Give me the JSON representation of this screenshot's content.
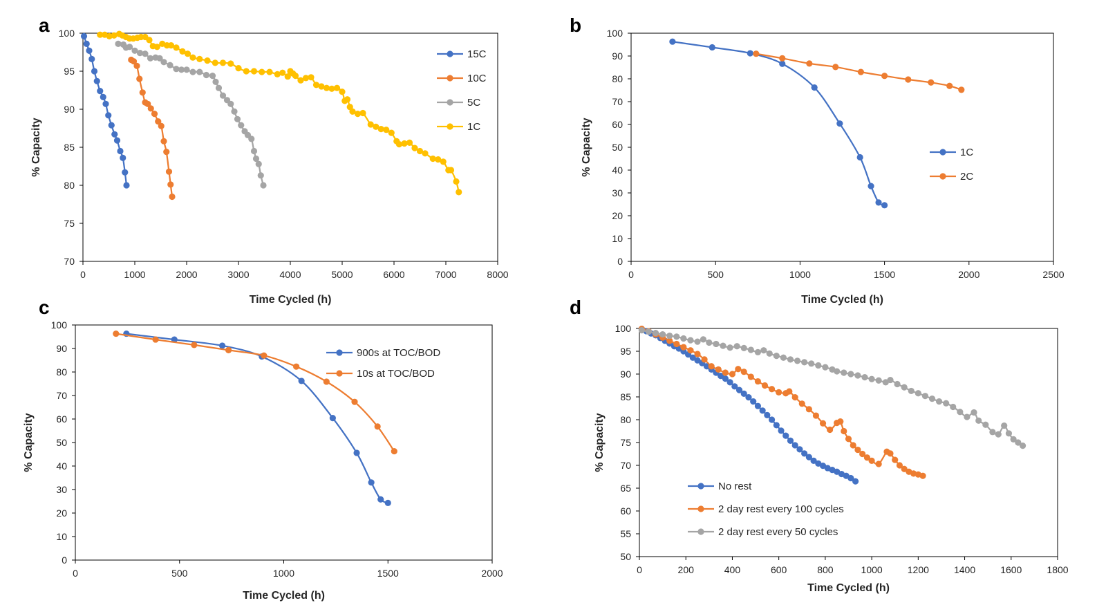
{
  "chart_data": [
    {
      "type": "line",
      "panel_label": "a",
      "xlabel": "Time Cycled (h)",
      "ylabel": "% Capacity",
      "xlim": [
        0,
        8000
      ],
      "ylim": [
        70,
        100
      ],
      "x_ticks": [
        "0",
        "1000",
        "2000",
        "3000",
        "4000",
        "5000",
        "6000",
        "7000",
        "8000"
      ],
      "y_ticks": [
        "70",
        "75",
        "80",
        "85",
        "90",
        "95",
        "100"
      ],
      "legend_position": "top-right",
      "series": [
        {
          "name": "15C",
          "color": "#4472C4",
          "x": [
            20,
            70,
            120,
            170,
            220,
            270,
            330,
            390,
            440,
            490,
            550,
            610,
            660,
            720,
            770,
            810,
            840
          ],
          "y": [
            99.6,
            98.6,
            97.7,
            96.6,
            95.0,
            93.7,
            92.4,
            91.6,
            90.7,
            89.2,
            87.9,
            86.7,
            85.9,
            84.5,
            83.6,
            81.7,
            80.0
          ]
        },
        {
          "name": "10C",
          "color": "#ED7D31",
          "x": [
            930,
            980,
            1040,
            1090,
            1150,
            1200,
            1250,
            1310,
            1380,
            1450,
            1510,
            1560,
            1610,
            1660,
            1690,
            1720
          ],
          "y": [
            96.5,
            96.3,
            95.7,
            94.0,
            92.2,
            90.9,
            90.7,
            90.1,
            89.4,
            88.4,
            87.8,
            85.8,
            84.4,
            81.8,
            80.1,
            78.5
          ]
        },
        {
          "name": "5C",
          "color": "#A5A5A5",
          "x": [
            680,
            780,
            830,
            900,
            1000,
            1100,
            1200,
            1300,
            1400,
            1480,
            1560,
            1680,
            1800,
            1900,
            2000,
            2120,
            2250,
            2380,
            2500,
            2560,
            2620,
            2700,
            2780,
            2850,
            2920,
            2980,
            3050,
            3120,
            3180,
            3250,
            3300,
            3340,
            3390,
            3430,
            3480
          ],
          "y": [
            98.6,
            98.5,
            98.1,
            98.2,
            97.7,
            97.4,
            97.3,
            96.7,
            96.8,
            96.7,
            96.2,
            95.8,
            95.3,
            95.2,
            95.2,
            94.9,
            94.9,
            94.5,
            94.4,
            93.6,
            92.8,
            91.8,
            91.2,
            90.7,
            89.7,
            88.7,
            87.9,
            87.1,
            86.6,
            86.1,
            84.5,
            83.5,
            82.8,
            81.3,
            80.0
          ]
        },
        {
          "name": "1C",
          "color": "#FFC000",
          "x": [
            330,
            420,
            510,
            600,
            700,
            760,
            830,
            900,
            970,
            1050,
            1120,
            1200,
            1280,
            1350,
            1430,
            1530,
            1620,
            1700,
            1800,
            1920,
            2020,
            2120,
            2250,
            2400,
            2550,
            2700,
            2850,
            3000,
            3150,
            3300,
            3450,
            3600,
            3750,
            3850,
            3950,
            4000,
            4050,
            4100,
            4200,
            4300,
            4400,
            4500,
            4600,
            4700,
            4800,
            4900,
            5000,
            5050,
            5100,
            5150,
            5200,
            5300,
            5400,
            5550,
            5650,
            5750,
            5850,
            5950,
            6050,
            6100,
            6200,
            6300,
            6400,
            6500,
            6600,
            6750,
            6850,
            6950,
            7050,
            7100,
            7200,
            7250
          ],
          "y": [
            99.8,
            99.8,
            99.6,
            99.7,
            99.9,
            99.7,
            99.5,
            99.3,
            99.3,
            99.4,
            99.5,
            99.5,
            99.1,
            98.3,
            98.2,
            98.6,
            98.4,
            98.4,
            98.1,
            97.6,
            97.3,
            96.8,
            96.6,
            96.4,
            96.1,
            96.1,
            96.0,
            95.4,
            95.0,
            95.0,
            94.9,
            94.9,
            94.6,
            94.8,
            94.3,
            95.0,
            94.7,
            94.4,
            93.8,
            94.1,
            94.2,
            93.2,
            93.0,
            92.8,
            92.7,
            92.8,
            92.3,
            91.1,
            91.3,
            90.3,
            89.7,
            89.4,
            89.5,
            88.0,
            87.7,
            87.4,
            87.3,
            86.9,
            85.8,
            85.4,
            85.5,
            85.6,
            84.9,
            84.5,
            84.2,
            83.5,
            83.4,
            83.1,
            82.0,
            82.0,
            80.5,
            79.1
          ]
        }
      ]
    },
    {
      "type": "line",
      "panel_label": "b",
      "xlabel": "Time Cycled (h)",
      "ylabel": "% Capacity",
      "xlim": [
        0,
        2500
      ],
      "ylim": [
        0,
        100
      ],
      "x_ticks": [
        "0",
        "500",
        "1000",
        "1500",
        "2000",
        "2500"
      ],
      "y_ticks": [
        "0",
        "10",
        "20",
        "30",
        "40",
        "50",
        "60",
        "70",
        "80",
        "90",
        "100"
      ],
      "legend_position": "right",
      "series": [
        {
          "name": "1C",
          "color": "#4472C4",
          "x": [
            245,
            480,
            705,
            895,
            1085,
            1235,
            1355,
            1420,
            1465,
            1500
          ],
          "y": [
            96.3,
            93.8,
            91.2,
            86.6,
            76.2,
            60.4,
            45.6,
            33.0,
            25.8,
            24.6
          ]
        },
        {
          "name": "2C",
          "color": "#ED7D31",
          "x": [
            740,
            895,
            1055,
            1210,
            1360,
            1500,
            1640,
            1775,
            1885,
            1955
          ],
          "y": [
            91.0,
            89.0,
            86.7,
            85.2,
            83.0,
            81.3,
            79.7,
            78.4,
            76.9,
            75.2
          ]
        }
      ]
    },
    {
      "type": "line",
      "panel_label": "c",
      "xlabel": "Time Cycled (h)",
      "ylabel": "% Capacity",
      "xlim": [
        0,
        2000
      ],
      "ylim": [
        0,
        100
      ],
      "x_ticks": [
        "0",
        "500",
        "1000",
        "1500",
        "2000"
      ],
      "y_ticks": [
        "0",
        "10",
        "20",
        "30",
        "40",
        "50",
        "60",
        "70",
        "80",
        "90",
        "100"
      ],
      "legend_position": "top-right",
      "series": [
        {
          "name": "900s at TOC/BOD",
          "color": "#4472C4",
          "x": [
            245,
            475,
            705,
            895,
            1085,
            1235,
            1350,
            1420,
            1465,
            1500
          ],
          "y": [
            96.3,
            93.8,
            91.2,
            86.6,
            76.2,
            60.4,
            45.6,
            33.0,
            25.8,
            24.3
          ]
        },
        {
          "name": "10s at TOC/BOD",
          "color": "#ED7D31",
          "x": [
            195,
            385,
            570,
            735,
            905,
            1060,
            1205,
            1340,
            1450,
            1530
          ],
          "y": [
            96.3,
            93.8,
            91.5,
            89.3,
            87.0,
            82.3,
            75.9,
            67.3,
            56.8,
            46.3
          ]
        }
      ]
    },
    {
      "type": "line",
      "panel_label": "d",
      "xlabel": "Time Cycled (h)",
      "ylabel": "% Capacity",
      "xlim": [
        0,
        1800
      ],
      "ylim": [
        50,
        100
      ],
      "x_ticks": [
        "0",
        "200",
        "400",
        "600",
        "800",
        "1000",
        "1200",
        "1400",
        "1600",
        "1800"
      ],
      "y_ticks": [
        "50",
        "55",
        "60",
        "65",
        "70",
        "75",
        "80",
        "85",
        "90",
        "95",
        "100"
      ],
      "legend_position": "bottom-left",
      "series": [
        {
          "name": "No rest",
          "color": "#4472C4",
          "x": [
            10,
            30,
            50,
            70,
            90,
            110,
            130,
            150,
            170,
            190,
            210,
            230,
            250,
            270,
            290,
            310,
            330,
            350,
            370,
            390,
            410,
            430,
            450,
            470,
            490,
            510,
            530,
            550,
            570,
            590,
            610,
            630,
            650,
            670,
            690,
            710,
            730,
            750,
            770,
            790,
            810,
            830,
            850,
            870,
            890,
            910,
            930
          ],
          "y": [
            99.9,
            99.4,
            98.9,
            98.5,
            97.9,
            97.3,
            96.7,
            96.1,
            95.6,
            95.0,
            94.3,
            93.6,
            93.0,
            92.4,
            91.7,
            91.0,
            90.3,
            89.6,
            89.0,
            88.2,
            87.3,
            86.5,
            85.7,
            84.9,
            84.0,
            83.0,
            82.0,
            81.0,
            80.0,
            78.8,
            77.6,
            76.5,
            75.4,
            74.4,
            73.5,
            72.6,
            71.8,
            71.0,
            70.4,
            69.9,
            69.4,
            69.0,
            68.6,
            68.1,
            67.7,
            67.2,
            66.5
          ]
        },
        {
          "name": "2 day rest every 100 cycles",
          "color": "#ED7D31",
          "x": [
            10,
            40,
            70,
            100,
            130,
            160,
            190,
            220,
            250,
            280,
            310,
            340,
            370,
            400,
            425,
            450,
            480,
            510,
            540,
            570,
            600,
            630,
            645,
            670,
            700,
            730,
            760,
            790,
            820,
            850,
            865,
            880,
            900,
            920,
            940,
            960,
            980,
            1000,
            1030,
            1065,
            1080,
            1100,
            1120,
            1140,
            1160,
            1180,
            1200,
            1220
          ],
          "y": [
            99.9,
            99.4,
            98.7,
            98.0,
            97.3,
            96.6,
            95.9,
            95.2,
            94.4,
            93.2,
            91.7,
            91.0,
            90.3,
            90.0,
            91.1,
            90.5,
            89.4,
            88.4,
            87.5,
            86.7,
            86.0,
            85.8,
            86.2,
            84.9,
            83.5,
            82.3,
            80.9,
            79.2,
            77.8,
            79.3,
            79.6,
            77.5,
            75.8,
            74.4,
            73.4,
            72.5,
            71.7,
            71.0,
            70.3,
            73.0,
            72.6,
            71.2,
            70.0,
            69.2,
            68.6,
            68.2,
            68.0,
            67.7
          ]
        },
        {
          "name": "2 day rest every 50 cycles",
          "color": "#A5A5A5",
          "x": [
            10,
            40,
            70,
            100,
            130,
            160,
            190,
            220,
            250,
            275,
            300,
            330,
            360,
            390,
            420,
            450,
            480,
            510,
            535,
            560,
            590,
            620,
            650,
            680,
            710,
            740,
            770,
            800,
            830,
            850,
            880,
            910,
            940,
            970,
            1000,
            1030,
            1060,
            1080,
            1110,
            1140,
            1170,
            1200,
            1230,
            1260,
            1290,
            1320,
            1350,
            1380,
            1410,
            1440,
            1460,
            1490,
            1520,
            1545,
            1570,
            1590,
            1610,
            1630,
            1650
          ],
          "y": [
            99.6,
            99.3,
            99.0,
            98.7,
            98.4,
            98.2,
            97.8,
            97.4,
            97.1,
            97.6,
            96.9,
            96.6,
            96.2,
            95.8,
            96.1,
            95.7,
            95.3,
            94.8,
            95.2,
            94.5,
            94.0,
            93.6,
            93.2,
            92.9,
            92.6,
            92.3,
            91.9,
            91.5,
            91.0,
            90.6,
            90.3,
            90.0,
            89.7,
            89.3,
            88.9,
            88.6,
            88.2,
            88.7,
            87.8,
            87.1,
            86.3,
            85.8,
            85.2,
            84.6,
            84.0,
            83.6,
            82.8,
            81.7,
            80.6,
            81.6,
            79.8,
            78.9,
            77.3,
            76.8,
            78.7,
            77.0,
            75.7,
            75.0,
            74.3
          ]
        }
      ]
    }
  ]
}
